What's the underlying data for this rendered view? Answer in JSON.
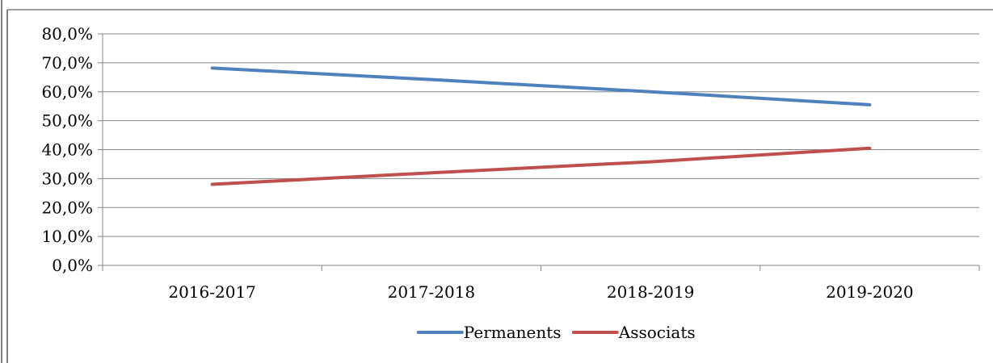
{
  "chart_data": {
    "type": "line",
    "categories": [
      "2016-2017",
      "2017-2018",
      "2018-2019",
      "2019-2020"
    ],
    "series": [
      {
        "name": "Permanents",
        "values": [
          68.2,
          64.2,
          60.0,
          55.5
        ],
        "color": "#4f81bd"
      },
      {
        "name": "Associats",
        "values": [
          28.0,
          32.0,
          35.8,
          40.5
        ],
        "color": "#c0504d"
      }
    ],
    "y_ticks": [
      "0,0%",
      "10,0%",
      "20,0%",
      "30,0%",
      "40,0%",
      "50,0%",
      "60,0%",
      "70,0%",
      "80,0%"
    ],
    "ylim": [
      0,
      80
    ],
    "grid": true,
    "legend_position": "bottom",
    "title": "",
    "xlabel": "",
    "ylabel": ""
  }
}
